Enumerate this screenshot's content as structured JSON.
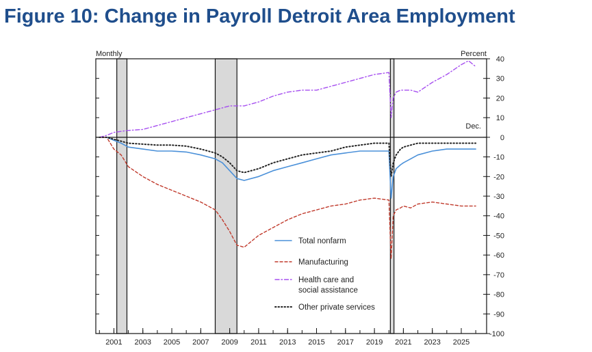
{
  "title": "Figure 10: Change in Payroll Detroit Area Employment",
  "chart_data": {
    "type": "line",
    "title": "Figure 10: Change in Payroll Detroit Area Employment",
    "left_axis_label": "Monthly",
    "right_axis_label": "Percent",
    "baseline_label": "Dec.",
    "xlim": [
      1999.75,
      2026.75
    ],
    "ylim": [
      -100,
      40
    ],
    "x_ticks": [
      2001,
      2003,
      2005,
      2007,
      2009,
      2011,
      2013,
      2015,
      2017,
      2019,
      2021,
      2023,
      2025
    ],
    "x_tick_labels": [
      "2001",
      "2003",
      "2005",
      "2007",
      "2009",
      "2011",
      "2013",
      "2015",
      "2017",
      "2019",
      "2021",
      "2023",
      "2025"
    ],
    "y_ticks": [
      40,
      30,
      20,
      10,
      0,
      -10,
      -20,
      -30,
      -40,
      -50,
      -60,
      -70,
      -80,
      -90,
      -100
    ],
    "y_tick_labels": [
      "40",
      "30",
      "20",
      "10",
      "0",
      "-10",
      "-20",
      "-30",
      "-40",
      "-50",
      "-60",
      "-70",
      "-80",
      "-90",
      "-100"
    ],
    "recessions": [
      {
        "start": 2001.2,
        "end": 2001.9
      },
      {
        "start": 2008.0,
        "end": 2009.5
      },
      {
        "start": 2020.1,
        "end": 2020.35
      }
    ],
    "legend": [
      {
        "label": "Total nonfarm",
        "color": "#4a90d9",
        "style": "solid"
      },
      {
        "label": "Manufacturing",
        "color": "#c0392b",
        "style": "dashed"
      },
      {
        "label": "Health care and social assistance",
        "lines": [
          "Health care and",
          "social assistance"
        ],
        "color": "#a64ff0",
        "style": "dashdot"
      },
      {
        "label": "Other private services",
        "color": "#222222",
        "style": "dotted"
      }
    ],
    "series": [
      {
        "name": "Total nonfarm",
        "x": [
          2000.0,
          2000.5,
          2001.0,
          2001.5,
          2002.0,
          2003.0,
          2004.0,
          2005.0,
          2006.0,
          2007.0,
          2008.0,
          2008.5,
          2009.0,
          2009.5,
          2010.0,
          2011.0,
          2012.0,
          2013.0,
          2014.0,
          2015.0,
          2016.0,
          2017.0,
          2018.0,
          2019.0,
          2020.0,
          2020.15,
          2020.3,
          2020.5,
          2020.8,
          2021.0,
          2021.5,
          2022.0,
          2023.0,
          2024.0,
          2025.0,
          2026.0
        ],
        "y": [
          0,
          0,
          -1.5,
          -3,
          -5,
          -6,
          -7,
          -7,
          -7.5,
          -9,
          -11,
          -13,
          -17,
          -21,
          -22,
          -20,
          -17,
          -15,
          -13,
          -11,
          -9,
          -8,
          -7,
          -7,
          -7,
          -31,
          -20,
          -16,
          -14,
          -13,
          -11,
          -9,
          -7,
          -6,
          -6,
          -6
        ]
      },
      {
        "name": "Manufacturing",
        "x": [
          2000.0,
          2000.5,
          2001.0,
          2001.5,
          2002.0,
          2003.0,
          2004.0,
          2005.0,
          2006.0,
          2007.0,
          2008.0,
          2008.5,
          2009.0,
          2009.5,
          2010.0,
          2011.0,
          2012.0,
          2013.0,
          2014.0,
          2015.0,
          2016.0,
          2017.0,
          2018.0,
          2019.0,
          2020.0,
          2020.15,
          2020.3,
          2020.5,
          2020.8,
          2021.0,
          2021.5,
          2022.0,
          2023.0,
          2024.0,
          2025.0,
          2026.0
        ],
        "y": [
          0,
          0,
          -6,
          -9,
          -15,
          -20,
          -24,
          -27,
          -30,
          -33,
          -37,
          -42,
          -48,
          -55,
          -56,
          -50,
          -46,
          -42,
          -39,
          -37,
          -35,
          -34,
          -32,
          -31,
          -32,
          -62,
          -40,
          -37,
          -36,
          -35,
          -36,
          -34,
          -33,
          -34,
          -35,
          -35
        ]
      },
      {
        "name": "Health care and social assistance",
        "x": [
          2000.0,
          2000.5,
          2001.0,
          2001.5,
          2002.0,
          2003.0,
          2004.0,
          2005.0,
          2006.0,
          2007.0,
          2008.0,
          2008.5,
          2009.0,
          2009.5,
          2010.0,
          2011.0,
          2012.0,
          2013.0,
          2014.0,
          2015.0,
          2016.0,
          2017.0,
          2018.0,
          2019.0,
          2020.0,
          2020.15,
          2020.3,
          2020.5,
          2020.8,
          2021.0,
          2021.5,
          2022.0,
          2023.0,
          2024.0,
          2025.0,
          2025.5,
          2026.0
        ],
        "y": [
          0,
          1,
          2.5,
          3,
          3.5,
          4,
          6,
          8,
          10,
          12,
          14,
          15,
          16,
          16,
          16,
          18,
          21,
          23,
          24,
          24,
          26,
          28,
          30,
          32,
          33,
          10,
          20,
          23,
          24,
          24,
          24,
          23,
          28,
          32,
          37,
          39,
          36
        ]
      },
      {
        "name": "Other private services",
        "x": [
          2000.0,
          2000.5,
          2001.0,
          2001.5,
          2002.0,
          2003.0,
          2004.0,
          2005.0,
          2006.0,
          2007.0,
          2008.0,
          2008.5,
          2009.0,
          2009.5,
          2010.0,
          2011.0,
          2012.0,
          2013.0,
          2014.0,
          2015.0,
          2016.0,
          2017.0,
          2018.0,
          2019.0,
          2020.0,
          2020.15,
          2020.3,
          2020.5,
          2020.8,
          2021.0,
          2021.5,
          2022.0,
          2023.0,
          2024.0,
          2025.0,
          2026.0
        ],
        "y": [
          0,
          0,
          -1,
          -2,
          -3,
          -3.5,
          -4,
          -4,
          -4.5,
          -6,
          -8,
          -10,
          -13,
          -17,
          -18,
          -16,
          -13,
          -11,
          -9,
          -8,
          -7,
          -5,
          -4,
          -3,
          -3,
          -20,
          -13,
          -9,
          -6,
          -5,
          -4,
          -3,
          -3,
          -3,
          -3,
          -3
        ]
      }
    ]
  }
}
